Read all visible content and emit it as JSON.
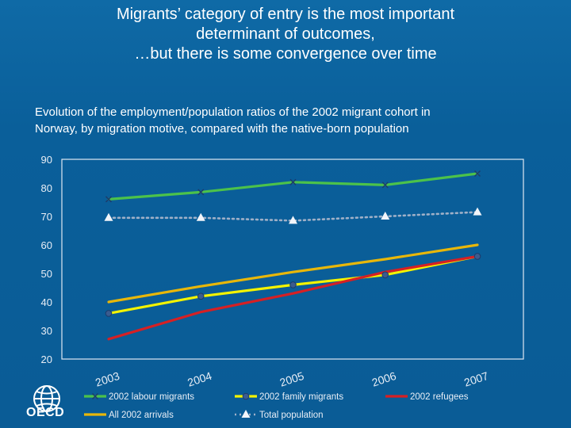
{
  "title_lines": [
    "Migrants’ category of entry is the most important",
    "determinant of outcomes,",
    "…but there is some convergence over time"
  ],
  "subtitle_lines": [
    "Evolution of the employment/population ratios of the 2002 migrant cohort in",
    "Norway, by migration motive, compared with the native-born population"
  ],
  "logo_text": "OECD",
  "chart_data": {
    "type": "line",
    "categories": [
      "2003",
      "2004",
      "2005",
      "2006",
      "2007"
    ],
    "ylim": [
      20,
      90
    ],
    "yticks": [
      20,
      30,
      40,
      50,
      60,
      70,
      80,
      90
    ],
    "grid": false,
    "legend_position": "bottom",
    "series": [
      {
        "name": "2002 labour migrants",
        "values": [
          76,
          78.5,
          82,
          81,
          85
        ],
        "color": "#4cc24a",
        "marker": "x",
        "dash": "none"
      },
      {
        "name": "2002 family migrants",
        "values": [
          36,
          42,
          46,
          49.5,
          56
        ],
        "color": "#f3f300",
        "marker": "circle",
        "dash": "none"
      },
      {
        "name": "2002 refugees",
        "values": [
          27,
          36.5,
          43,
          50.5,
          56
        ],
        "color": "#d62024",
        "marker": "none",
        "dash": "none"
      },
      {
        "name": "All 2002 arrivals",
        "values": [
          40,
          45.5,
          50.5,
          55,
          60
        ],
        "color": "#e8b70a",
        "marker": "none",
        "dash": "none"
      },
      {
        "name": "Total population",
        "values": [
          69.5,
          69.5,
          68.5,
          70,
          71.5
        ],
        "color": "#9fb0c8",
        "marker": "triangle",
        "dash": "dot"
      }
    ]
  }
}
